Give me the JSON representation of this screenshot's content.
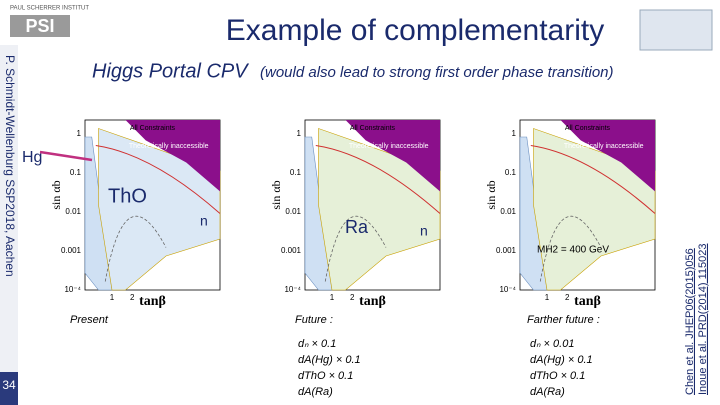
{
  "header": {
    "institute": "PAUL SCHERRER INSTITUT",
    "logo": "PSI",
    "title": "Example of complementarity",
    "subtitle": "Higgs Portal CPV",
    "note": "(would also lead to strong first order phase transition)"
  },
  "sidebar": {
    "left": "P. Schmidt-Wellenburg   SSP2018, Aachen",
    "right": [
      "Inoue et al. PRD(2014) 115023",
      "Chen et al. JHEP06(2015)056"
    ]
  },
  "page_number": "34",
  "panels": [
    {
      "title": "All Constraints",
      "region_label": "Theoretically inaccessible",
      "ylabel": "sin αb",
      "yticks": [
        "1",
        "0.1",
        "0.01",
        "0.001",
        "10⁻⁴"
      ],
      "xticks": [
        "1",
        "2"
      ],
      "xlabel": "tanβ",
      "annotations": [
        "Hg",
        "ThO",
        "n"
      ],
      "caption": "Present",
      "items": []
    },
    {
      "title": "All Constraints",
      "region_label": "Theoretically inaccessible",
      "ylabel": "sin αb",
      "yticks": [
        "1",
        "0.1",
        "0.01",
        "0.001",
        "10⁻⁴"
      ],
      "xticks": [
        "1",
        "2"
      ],
      "xlabel": "tanβ",
      "annotations": [
        "Ra",
        "n"
      ],
      "caption": "Future :",
      "items": [
        "dₙ × 0.1",
        "dA(Hg) × 0.1",
        "dThO × 0.1",
        "dA(Ra)"
      ]
    },
    {
      "title": "All Constraints",
      "region_label": "Theoretically inaccessible",
      "ylabel": "sin αb",
      "yticks": [
        "1",
        "0.1",
        "0.01",
        "0.001",
        "10⁻⁴"
      ],
      "xticks": [
        "1",
        "2"
      ],
      "xlabel": "tanβ",
      "annotations": [
        "MH2 = 400 GeV"
      ],
      "caption": "Farther future :",
      "items": [
        "dₙ × 0.01",
        "dA(Hg) × 0.1",
        "dThO × 0.1",
        "dA(Ra)"
      ]
    }
  ]
}
